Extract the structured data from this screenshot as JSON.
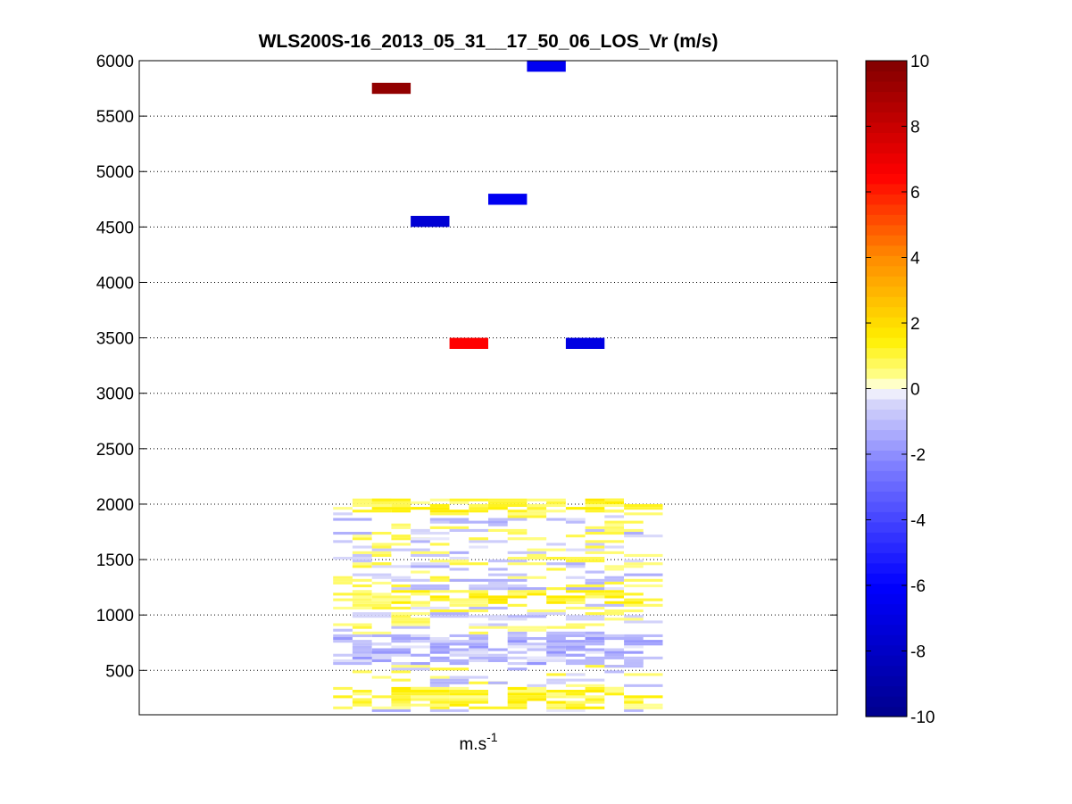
{
  "chart_data": {
    "type": "heatmap",
    "title": "WLS200S-16_2013_05_31__17_50_06_LOS_Vr (m/s)",
    "xlabel": "m.s",
    "xlabel_sup": "-1",
    "ylabel": "",
    "ylim": [
      100,
      6000
    ],
    "yticks": [
      500,
      1000,
      1500,
      2000,
      2500,
      3000,
      3500,
      4000,
      4500,
      5000,
      5500,
      6000
    ],
    "grid": true,
    "colorbar": {
      "range": [
        -10,
        10
      ],
      "ticks": [
        -10,
        -8,
        -6,
        -4,
        -2,
        0,
        2,
        4,
        6,
        8,
        10
      ],
      "placement": "right"
    },
    "columns": 18,
    "cells": [
      {
        "col": 6,
        "y": 5750,
        "v": 9.5
      },
      {
        "col": 10,
        "y": 5950,
        "v": -6.5
      },
      {
        "col": 7,
        "y": 4550,
        "v": -7.5
      },
      {
        "col": 9,
        "y": 4750,
        "v": -6.5
      },
      {
        "col": 8,
        "y": 3450,
        "v": 6.5
      },
      {
        "col": 11,
        "y": 3450,
        "v": -7.0
      }
    ],
    "band": {
      "col_start": 5,
      "col_end": 12,
      "y_min": 125,
      "y_max": 2050,
      "row_height": 25,
      "seed": 7
    }
  }
}
